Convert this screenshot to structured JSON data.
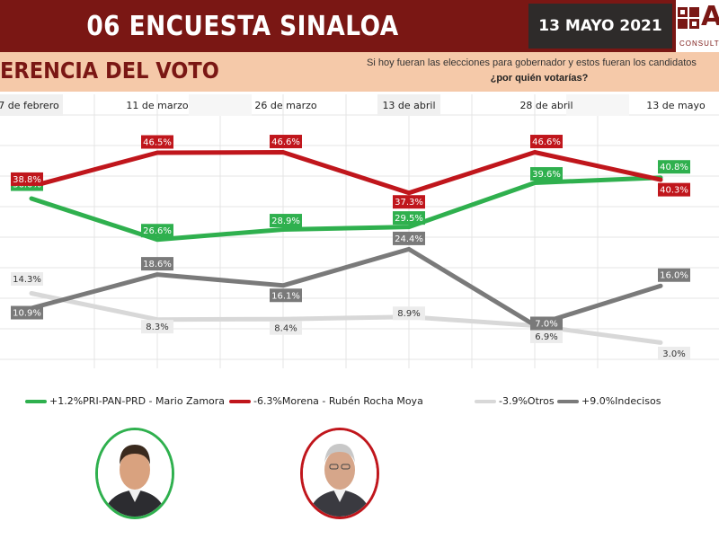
{
  "header": {
    "title": "06 ENCUESTA SINALOA",
    "date": "13 MAYO 2021",
    "logo_text": "Ar",
    "logo_sub": "CONSULTORES"
  },
  "section": {
    "title": "ERENCIA DEL VOTO",
    "question_line1": "Si hoy fueran las elecciones para gobernador y estos fueran los candidatos",
    "question_line2": "¿por quién votarías?"
  },
  "colors": {
    "header_bg": "#7a1714",
    "subheader_bg": "#f5c9a9",
    "green": "#2fb04e",
    "red": "#c0161c",
    "light_gray": "#d8d8d8",
    "dark_gray": "#7a7a7a"
  },
  "chart_data": {
    "type": "line",
    "x": [
      "7 de febrero",
      "11 de marzo",
      "26 de marzo",
      "13 de abril",
      "28 de abril",
      "13 de mayo"
    ],
    "ylim": [
      0,
      50
    ],
    "grid": true,
    "legend_position": "bottom",
    "series": [
      {
        "name": "PRI-PAN-PRD - Mario Zamora",
        "change": "+1.2%",
        "color": "#2fb04e",
        "values": [
          36.0,
          26.6,
          28.9,
          29.5,
          39.6,
          40.8
        ],
        "labels": [
          "36.0%",
          "26.6%",
          "28.9%",
          "29.5%",
          "39.6%",
          "40.8%"
        ]
      },
      {
        "name": "Morena - Rubén Rocha Moya",
        "change": "-6.3%",
        "color": "#c0161c",
        "values": [
          38.8,
          46.5,
          46.6,
          37.3,
          46.6,
          40.3
        ],
        "labels": [
          "38.8%",
          "46.5%",
          "46.6%",
          "37.3%",
          "46.6%",
          "40.3%"
        ]
      },
      {
        "name": "Otros",
        "change": "-3.9%",
        "color": "#d8d8d8",
        "values": [
          14.3,
          8.3,
          8.4,
          8.9,
          6.9,
          3.0
        ],
        "labels": [
          "14.3%",
          "8.3%",
          "8.4%",
          "8.9%",
          "6.9%",
          "3.0%"
        ]
      },
      {
        "name": "Indecisos",
        "change": "+9.0%",
        "color": "#7a7a7a",
        "values": [
          10.9,
          18.6,
          16.1,
          24.4,
          7.0,
          16.0
        ],
        "labels": [
          "10.9%",
          "18.6%",
          "16.1%",
          "24.4%",
          "7.0%",
          "16.0%"
        ]
      }
    ]
  },
  "candidates": [
    {
      "icon": "candidate-photo-zamora",
      "border": "#2fb04e"
    },
    {
      "icon": "candidate-photo-rocha",
      "border": "#c0161c"
    }
  ]
}
